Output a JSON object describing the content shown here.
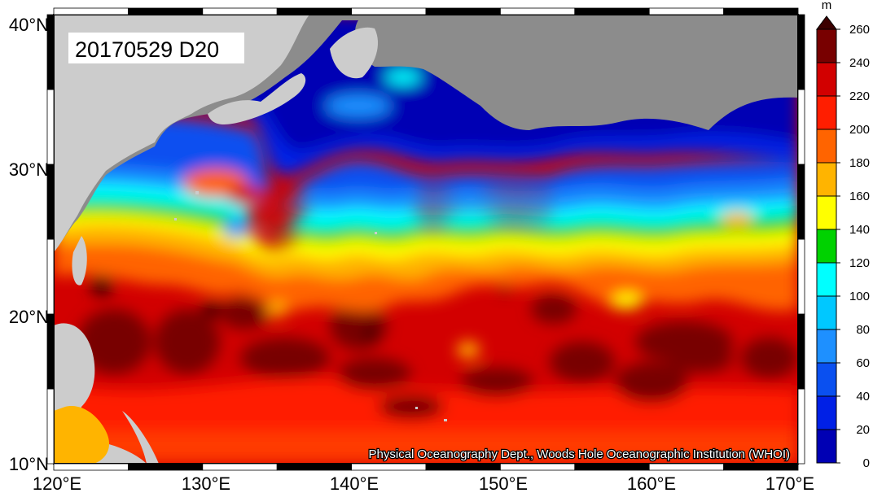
{
  "title": "20170529 D20",
  "credit": "Physical Oceanography Dept., Woods Hole Oceanographic Institution (WHOI)",
  "colorbar": {
    "unit": "m",
    "tick_labels": [
      "0",
      "20",
      "40",
      "60",
      "80",
      "100",
      "120",
      "140",
      "160",
      "180",
      "200",
      "220",
      "240",
      "260"
    ],
    "colors": [
      "#0000b4",
      "#0020e6",
      "#0a50f0",
      "#1e90ff",
      "#00c8ff",
      "#00ffff",
      "#00d200",
      "#ffff00",
      "#ffb400",
      "#ff6400",
      "#ff1e00",
      "#d20000",
      "#780000"
    ],
    "top_color": "#3c0000",
    "range": [
      0,
      260
    ],
    "step": 20
  },
  "axes": {
    "x_tick_labels": [
      "120°E",
      "130°E",
      "140°E",
      "150°E",
      "160°E",
      "170°E"
    ],
    "y_tick_labels": [
      "10°N",
      "20°N",
      "30°N",
      "40°N"
    ],
    "lon_range": [
      120,
      170
    ],
    "lat_range": [
      10,
      40
    ]
  },
  "colors": {
    "land": "#cccccc",
    "no_data": "#8c8c8c",
    "frame": "#000000"
  },
  "chart_data": {
    "type": "heatmap",
    "title": "20170529 D20",
    "xlim": [
      120,
      170
    ],
    "ylim": [
      10,
      40
    ],
    "colorbar_range": [
      0,
      260
    ],
    "colorbar_unit": "m"
  }
}
